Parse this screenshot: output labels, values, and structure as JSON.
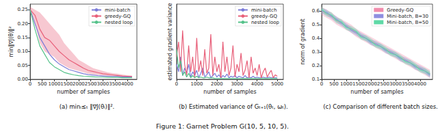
{
  "caption": "Figure 1: Garnet Problem G(10, 5, 10, 5).",
  "chart_data": [
    {
      "type": "line",
      "title": "(a) minᵢ≤ₜ ‖∇J(θᵢ)‖².",
      "x_label": "number of samples",
      "y_label": "min‖∇J(θ)‖²",
      "xlim": [
        0,
        4400
      ],
      "xticks": [
        0,
        500,
        1000,
        1500,
        2000,
        2500,
        3000,
        3500,
        4000
      ],
      "ylim": [
        0,
        0.27
      ],
      "yticks": [
        {
          "value": 0,
          "label": "0.00"
        },
        0.05,
        {
          "value": 0.1,
          "label": "0.10"
        },
        0.15,
        {
          "value": 0.2,
          "label": "0.20"
        },
        0.25
      ],
      "grid": false,
      "legend": "upper right",
      "x": [
        0,
        200,
        400,
        600,
        800,
        1000,
        1200,
        1400,
        1600,
        1800,
        2000,
        2200,
        2400,
        2600,
        2800,
        3000,
        3200,
        3400,
        3600,
        3800,
        4000,
        4200
      ],
      "series": [
        {
          "name": "mini-batch",
          "color": "#7b7bd8",
          "values": [
            0.25,
            0.2,
            0.15,
            0.12,
            0.09,
            0.07,
            0.055,
            0.045,
            0.035,
            0.03,
            0.025,
            0.02,
            0.017,
            0.015,
            0.013,
            0.012,
            0.011,
            0.01,
            0.01,
            0.009,
            0.009,
            0.009
          ]
        },
        {
          "name": "greedy-GQ",
          "color": "#e8607a",
          "values": [
            0.25,
            0.23,
            0.18,
            0.15,
            0.14,
            0.12,
            0.1,
            0.085,
            0.07,
            0.06,
            0.05,
            0.04,
            0.032,
            0.028,
            0.024,
            0.02,
            0.018,
            0.016,
            0.014,
            0.012,
            0.011,
            0.01
          ],
          "lower": [
            0.24,
            0.2,
            0.13,
            0.1,
            0.09,
            0.08,
            0.06,
            0.05,
            0.04,
            0.035,
            0.03,
            0.025,
            0.02,
            0.018,
            0.016,
            0.014,
            0.012,
            0.011,
            0.01,
            0.009,
            0.008,
            0.008
          ],
          "upper": [
            0.26,
            0.25,
            0.24,
            0.22,
            0.2,
            0.18,
            0.16,
            0.13,
            0.11,
            0.09,
            0.07,
            0.06,
            0.05,
            0.04,
            0.035,
            0.03,
            0.025,
            0.022,
            0.02,
            0.017,
            0.015,
            0.013
          ]
        },
        {
          "name": "nested loop",
          "color": "#55c28a",
          "values": [
            0.25,
            0.18,
            0.12,
            0.09,
            0.06,
            0.045,
            0.035,
            0.025,
            0.02,
            0.016,
            0.013,
            0.011,
            0.01,
            0.009,
            0.008,
            0.008,
            0.007,
            0.007,
            0.007,
            0.006,
            0.006,
            0.006
          ]
        }
      ]
    },
    {
      "type": "line",
      "title": "(b) Estimated variance of Gₜ₊₁(θₜ, ωₜ).",
      "x_label": "number of samples",
      "y_label": "estimated gradient variance",
      "xlim": [
        0,
        5300
      ],
      "xticks": [
        0,
        1000,
        2000,
        3000,
        4000,
        5000
      ],
      "ylim": [
        0,
        1
      ],
      "tick_labels": "x",
      "grid": false,
      "legend": "upper right",
      "x": [
        0,
        100,
        200,
        300,
        400,
        500,
        600,
        700,
        800,
        900,
        1000,
        1100,
        1200,
        1300,
        1400,
        1500,
        1600,
        1700,
        1800,
        1900,
        2000,
        2100,
        2200,
        2300,
        2400,
        2500,
        2600,
        2700,
        2800,
        2900,
        3000,
        3100,
        3200,
        3300,
        3400,
        3500,
        3600,
        3700,
        3800,
        3900,
        4000,
        4100,
        4200,
        4300,
        4400,
        4500,
        4600,
        4700,
        4800,
        4900,
        5000
      ],
      "series": [
        {
          "name": "mini-batch",
          "color": "#7b7bd8",
          "values": [
            0.2,
            0.1,
            0.3,
            0.05,
            0.15,
            0.08,
            0.2,
            0.03,
            0.1,
            0.05,
            0.12,
            0.02,
            0.08,
            0.15,
            0.03,
            0.06,
            0.1,
            0.02,
            0.05,
            0.08,
            0.03,
            0.06,
            0.02,
            0.05,
            0.03,
            0.07,
            0.02,
            0.04,
            0.03,
            0.05,
            0.02,
            0.04,
            0.03,
            0.02,
            0.05,
            0.02,
            0.03,
            0.02,
            0.04,
            0.02,
            0.03,
            0.02,
            0.02,
            0.03,
            0.02,
            0.02,
            0.03,
            0.02,
            0.02,
            0.02,
            0.02
          ]
        },
        {
          "name": "greedy-GQ",
          "color": "#e8607a",
          "values": [
            0.3,
            0.5,
            0.1,
            0.65,
            0.2,
            0.05,
            0.45,
            0.1,
            0.3,
            0.02,
            0.55,
            0.1,
            0.25,
            0.05,
            0.4,
            0.08,
            0.15,
            0.6,
            0.05,
            0.3,
            0.1,
            0.2,
            0.02,
            0.5,
            0.1,
            0.3,
            0.05,
            0.15,
            0.45,
            0.03,
            0.2,
            0.1,
            0.35,
            0.05,
            0.12,
            0.25,
            0.02,
            0.3,
            0.08,
            0.15,
            0.05,
            0.2,
            0.02,
            0.1,
            0.15,
            0.03,
            0.08,
            0.12,
            0.02,
            0.06,
            0.04
          ]
        },
        {
          "name": "nested loop",
          "color": "#55c28a",
          "values": [
            0.4,
            0.15,
            0.25,
            0.05,
            0.1,
            0.03,
            0.08,
            0.02,
            0.05,
            0.02,
            0.04,
            0.02,
            0.03,
            0.02,
            0.02,
            0.03,
            0.02,
            0.02,
            0.02,
            0.01,
            0.01,
            0.01,
            0.01,
            0.01,
            0.01,
            0.01,
            0.01,
            0.01,
            0.01,
            0.01,
            0.01,
            0.01,
            0.01,
            0.01,
            0.01,
            0.01,
            0.01,
            0.01,
            0.01,
            0.01,
            0.01,
            0.01,
            0.01,
            0.01,
            0.01,
            0.01,
            0.01,
            0.01,
            0.01,
            0.01,
            0.01
          ]
        }
      ]
    },
    {
      "type": "line",
      "title": "(c) Comparison of different batch sizes.",
      "x_label": "number of samples",
      "y_label": "norm of gradient",
      "xlim": [
        0,
        4500
      ],
      "xticks": [
        0,
        500,
        1000,
        1500,
        2000,
        2500,
        3000,
        3500,
        4000
      ],
      "ylim": [
        0.1,
        0.65
      ],
      "yticks": [
        0.1,
        0.2,
        0.3,
        0.4,
        0.5,
        0.6
      ],
      "grid": false,
      "legend": "upper right",
      "x": [
        0,
        200,
        400,
        600,
        800,
        1000,
        1200,
        1400,
        1600,
        1800,
        2000,
        2200,
        2400,
        2600,
        2800,
        3000,
        3200,
        3400,
        3600,
        3800,
        4000,
        4200,
        4400
      ],
      "series": [
        {
          "name": "Greedy-GQ",
          "color": "#f08cac",
          "values": [
            0.6,
            0.58,
            0.56,
            0.53,
            0.51,
            0.49,
            0.47,
            0.44,
            0.42,
            0.4,
            0.38,
            0.36,
            0.34,
            0.32,
            0.3,
            0.28,
            0.26,
            0.24,
            0.22,
            0.2,
            0.18,
            0.16,
            0.14
          ],
          "lower": [
            0.57,
            0.55,
            0.53,
            0.5,
            0.48,
            0.46,
            0.44,
            0.41,
            0.39,
            0.37,
            0.35,
            0.33,
            0.31,
            0.29,
            0.27,
            0.25,
            0.23,
            0.21,
            0.19,
            0.17,
            0.15,
            0.13,
            0.11
          ],
          "upper": [
            0.63,
            0.61,
            0.59,
            0.56,
            0.54,
            0.52,
            0.5,
            0.47,
            0.45,
            0.43,
            0.41,
            0.39,
            0.37,
            0.35,
            0.33,
            0.31,
            0.29,
            0.27,
            0.25,
            0.23,
            0.21,
            0.19,
            0.17
          ]
        },
        {
          "name": "Mini-batch, B=30",
          "color": "#8f8fe0",
          "values": [
            0.6,
            0.59,
            0.56,
            0.54,
            0.51,
            0.49,
            0.46,
            0.44,
            0.42,
            0.4,
            0.37,
            0.36,
            0.34,
            0.31,
            0.3,
            0.28,
            0.25,
            0.24,
            0.22,
            0.19,
            0.18,
            0.16,
            0.13
          ],
          "lower": [
            0.58,
            0.57,
            0.54,
            0.52,
            0.49,
            0.47,
            0.44,
            0.42,
            0.4,
            0.38,
            0.35,
            0.34,
            0.32,
            0.29,
            0.28,
            0.26,
            0.23,
            0.22,
            0.2,
            0.17,
            0.16,
            0.14,
            0.11
          ],
          "upper": [
            0.62,
            0.61,
            0.58,
            0.56,
            0.53,
            0.51,
            0.48,
            0.46,
            0.44,
            0.42,
            0.39,
            0.38,
            0.36,
            0.33,
            0.32,
            0.3,
            0.27,
            0.26,
            0.24,
            0.21,
            0.2,
            0.18,
            0.15
          ]
        },
        {
          "name": "Mini-batch, B=50",
          "color": "#5fd9a6",
          "values": [
            0.61,
            0.58,
            0.57,
            0.53,
            0.52,
            0.48,
            0.47,
            0.45,
            0.41,
            0.4,
            0.38,
            0.35,
            0.34,
            0.32,
            0.29,
            0.28,
            0.26,
            0.23,
            0.22,
            0.2,
            0.17,
            0.16,
            0.14
          ],
          "lower": [
            0.59,
            0.56,
            0.55,
            0.51,
            0.5,
            0.46,
            0.45,
            0.43,
            0.39,
            0.38,
            0.36,
            0.33,
            0.32,
            0.3,
            0.27,
            0.26,
            0.24,
            0.21,
            0.2,
            0.18,
            0.15,
            0.14,
            0.12
          ],
          "upper": [
            0.63,
            0.6,
            0.59,
            0.55,
            0.54,
            0.5,
            0.49,
            0.47,
            0.43,
            0.42,
            0.4,
            0.37,
            0.36,
            0.34,
            0.31,
            0.3,
            0.28,
            0.25,
            0.24,
            0.22,
            0.19,
            0.18,
            0.16
          ]
        }
      ]
    }
  ]
}
